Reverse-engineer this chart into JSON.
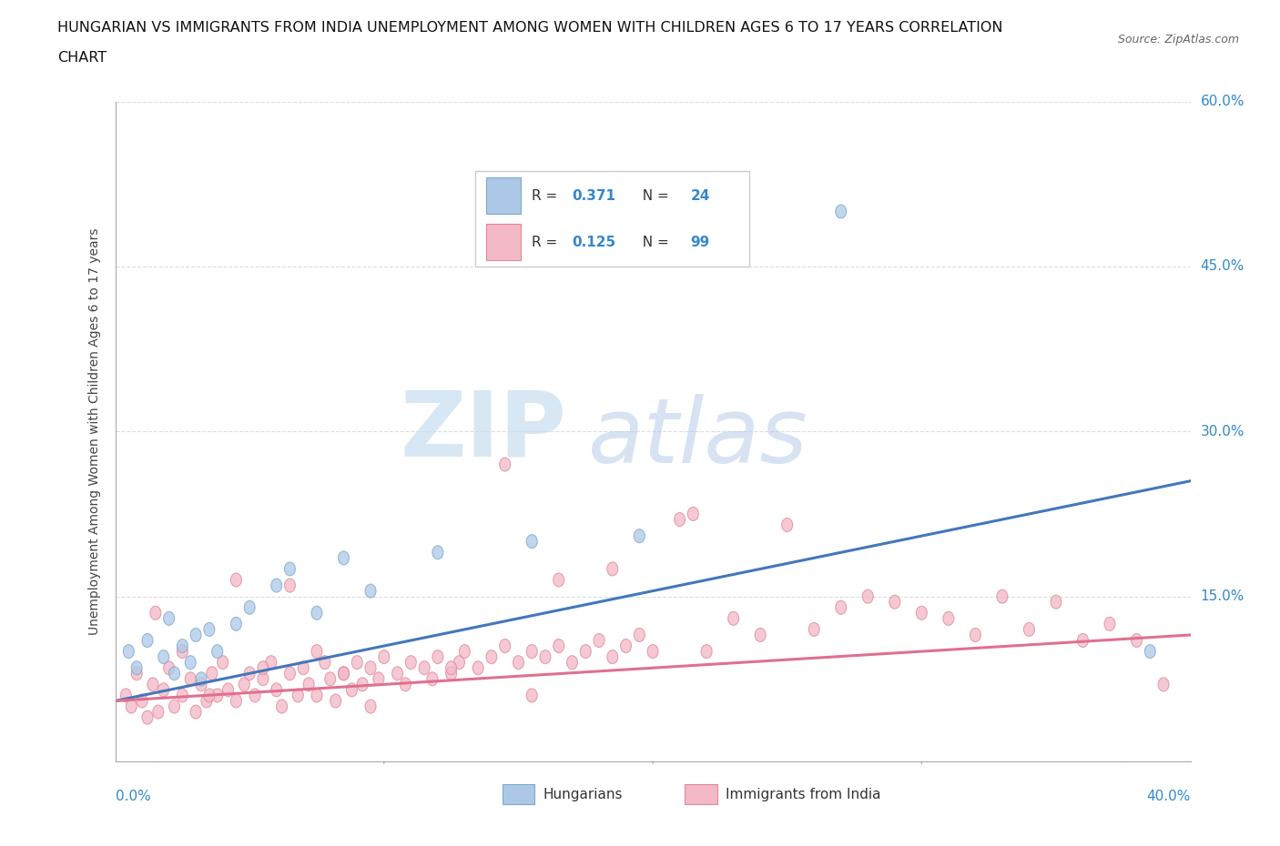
{
  "title_line1": "HUNGARIAN VS IMMIGRANTS FROM INDIA UNEMPLOYMENT AMONG WOMEN WITH CHILDREN AGES 6 TO 17 YEARS CORRELATION",
  "title_line2": "CHART",
  "source_text": "Source: ZipAtlas.com",
  "ylabel": "Unemployment Among Women with Children Ages 6 to 17 years",
  "xlim": [
    0.0,
    0.4
  ],
  "ylim": [
    0.0,
    0.6
  ],
  "yticks": [
    0.0,
    0.15,
    0.3,
    0.45,
    0.6
  ],
  "ytick_labels": [
    "",
    "15.0%",
    "30.0%",
    "45.0%",
    "60.0%"
  ],
  "background_color": "#ffffff",
  "grid_color": "#dddddd",
  "hungarian_color": "#adc8e6",
  "hungarian_edge_color": "#7aaad0",
  "india_color": "#f2b8c6",
  "india_edge_color": "#e08898",
  "trend_hungarian_color": "#4477bb",
  "trend_india_color": "#e07090",
  "watermark_zip": "ZIP",
  "watermark_atlas": "atlas",
  "hung_trend_start_y": 0.055,
  "hung_trend_end_y": 0.255,
  "india_trend_start_y": 0.055,
  "india_trend_end_y": 0.115,
  "hungarian_x": [
    0.005,
    0.008,
    0.012,
    0.018,
    0.02,
    0.022,
    0.025,
    0.028,
    0.03,
    0.032,
    0.035,
    0.038,
    0.045,
    0.05,
    0.06,
    0.065,
    0.075,
    0.085,
    0.095,
    0.12,
    0.155,
    0.195,
    0.27,
    0.385
  ],
  "hungarian_y": [
    0.1,
    0.085,
    0.11,
    0.095,
    0.13,
    0.08,
    0.105,
    0.09,
    0.115,
    0.075,
    0.12,
    0.1,
    0.125,
    0.14,
    0.16,
    0.175,
    0.135,
    0.185,
    0.155,
    0.19,
    0.2,
    0.205,
    0.5,
    0.1
  ],
  "india_x": [
    0.004,
    0.006,
    0.008,
    0.01,
    0.012,
    0.014,
    0.016,
    0.018,
    0.02,
    0.022,
    0.025,
    0.028,
    0.03,
    0.032,
    0.034,
    0.036,
    0.038,
    0.04,
    0.042,
    0.045,
    0.048,
    0.05,
    0.052,
    0.055,
    0.058,
    0.06,
    0.062,
    0.065,
    0.068,
    0.07,
    0.072,
    0.075,
    0.078,
    0.08,
    0.082,
    0.085,
    0.088,
    0.09,
    0.092,
    0.095,
    0.098,
    0.1,
    0.105,
    0.108,
    0.11,
    0.115,
    0.118,
    0.12,
    0.125,
    0.128,
    0.13,
    0.135,
    0.14,
    0.145,
    0.15,
    0.155,
    0.16,
    0.165,
    0.17,
    0.175,
    0.18,
    0.185,
    0.19,
    0.195,
    0.2,
    0.21,
    0.22,
    0.23,
    0.24,
    0.25,
    0.26,
    0.27,
    0.28,
    0.29,
    0.3,
    0.31,
    0.32,
    0.33,
    0.34,
    0.35,
    0.36,
    0.37,
    0.38,
    0.39,
    0.015,
    0.025,
    0.035,
    0.045,
    0.055,
    0.065,
    0.075,
    0.085,
    0.095,
    0.125,
    0.145,
    0.165,
    0.185,
    0.215,
    0.155
  ],
  "india_y": [
    0.06,
    0.05,
    0.08,
    0.055,
    0.04,
    0.07,
    0.045,
    0.065,
    0.085,
    0.05,
    0.06,
    0.075,
    0.045,
    0.07,
    0.055,
    0.08,
    0.06,
    0.09,
    0.065,
    0.055,
    0.07,
    0.08,
    0.06,
    0.075,
    0.09,
    0.065,
    0.05,
    0.08,
    0.06,
    0.085,
    0.07,
    0.06,
    0.09,
    0.075,
    0.055,
    0.08,
    0.065,
    0.09,
    0.07,
    0.085,
    0.075,
    0.095,
    0.08,
    0.07,
    0.09,
    0.085,
    0.075,
    0.095,
    0.08,
    0.09,
    0.1,
    0.085,
    0.095,
    0.105,
    0.09,
    0.1,
    0.095,
    0.105,
    0.09,
    0.1,
    0.11,
    0.095,
    0.105,
    0.115,
    0.1,
    0.22,
    0.1,
    0.13,
    0.115,
    0.215,
    0.12,
    0.14,
    0.15,
    0.145,
    0.135,
    0.13,
    0.115,
    0.15,
    0.12,
    0.145,
    0.11,
    0.125,
    0.11,
    0.07,
    0.135,
    0.1,
    0.06,
    0.165,
    0.085,
    0.16,
    0.1,
    0.08,
    0.05,
    0.085,
    0.27,
    0.165,
    0.175,
    0.225,
    0.06
  ]
}
